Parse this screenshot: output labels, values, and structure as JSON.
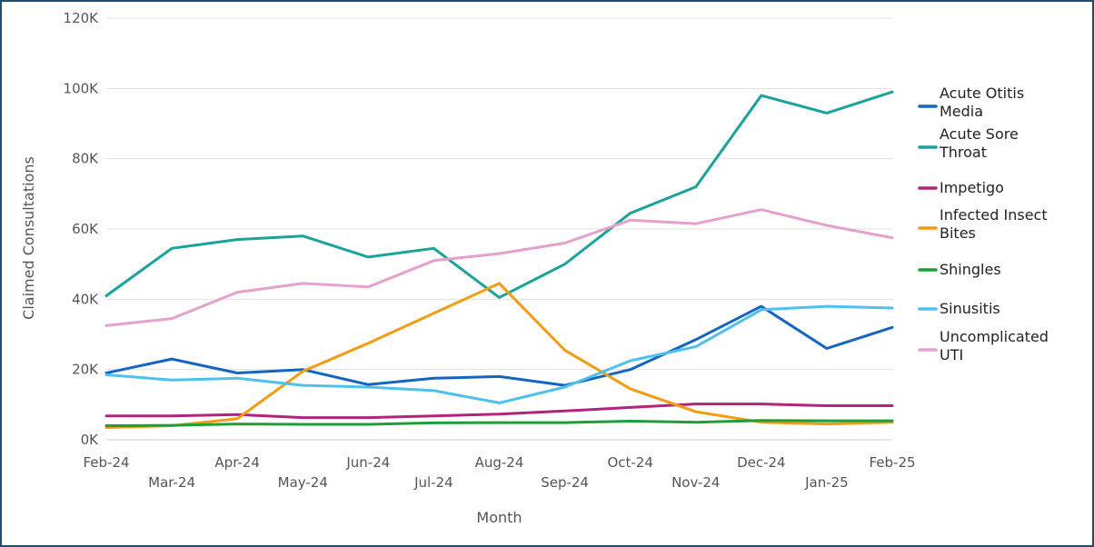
{
  "chart_data": {
    "type": "line",
    "title": "",
    "xlabel": "Month",
    "ylabel": "Claimed Consultations",
    "categories": [
      "Feb-24",
      "Mar-24",
      "Apr-24",
      "May-24",
      "Jun-24",
      "Jul-24",
      "Aug-24",
      "Sep-24",
      "Oct-24",
      "Nov-24",
      "Dec-24",
      "Jan-25",
      "Feb-25"
    ],
    "ylim": [
      0,
      120000
    ],
    "yticks": [
      {
        "value": 0,
        "label": "0K"
      },
      {
        "value": 20000,
        "label": "20K"
      },
      {
        "value": 40000,
        "label": "40K"
      },
      {
        "value": 60000,
        "label": "60K"
      },
      {
        "value": 80000,
        "label": "80K"
      },
      {
        "value": 100000,
        "label": "100K"
      },
      {
        "value": 120000,
        "label": "120K"
      }
    ],
    "grid": true,
    "legend_position": "right",
    "series": [
      {
        "name": "Acute Otitis Media",
        "legend_lines": [
          "Acute Otitis",
          "Media"
        ],
        "color": "#1565c0",
        "values": [
          19000,
          23000,
          19000,
          20000,
          15700,
          17500,
          18000,
          15500,
          20000,
          28500,
          38000,
          26000,
          32000
        ]
      },
      {
        "name": "Acute Sore Throat",
        "legend_lines": [
          "Acute Sore",
          "Throat"
        ],
        "color": "#1aa39a",
        "values": [
          41000,
          54500,
          57000,
          58000,
          52000,
          54500,
          40500,
          50000,
          64500,
          72000,
          98000,
          93000,
          99000
        ]
      },
      {
        "name": "Impetigo",
        "legend_lines": [
          "Impetigo"
        ],
        "color": "#b0247d",
        "values": [
          6800,
          6800,
          7200,
          6300,
          6300,
          6800,
          7300,
          8200,
          9200,
          10200,
          10200,
          9700,
          9700
        ]
      },
      {
        "name": "Infected Insect Bites",
        "legend_lines": [
          "Infected Insect",
          "Bites"
        ],
        "color": "#f39c12",
        "values": [
          3500,
          4000,
          6000,
          19500,
          27500,
          36000,
          44500,
          25500,
          14500,
          8000,
          5000,
          4500,
          5000
        ]
      },
      {
        "name": "Shingles",
        "legend_lines": [
          "Shingles"
        ],
        "color": "#1e9e3a",
        "values": [
          4000,
          4100,
          4500,
          4400,
          4400,
          4800,
          4900,
          4900,
          5300,
          5000,
          5500,
          5400,
          5400
        ]
      },
      {
        "name": "Sinusitis",
        "legend_lines": [
          "Sinusitis"
        ],
        "color": "#4fc0ee",
        "values": [
          18500,
          17000,
          17500,
          15500,
          15000,
          14000,
          10500,
          15000,
          22500,
          26500,
          37000,
          38000,
          37500
        ]
      },
      {
        "name": "Uncomplicated UTI",
        "legend_lines": [
          "Uncomplicated",
          "UTI"
        ],
        "color": "#e4a1cc",
        "values": [
          32500,
          34500,
          42000,
          44500,
          43500,
          51000,
          53000,
          56000,
          62500,
          61500,
          65500,
          61000,
          57500
        ]
      }
    ]
  }
}
